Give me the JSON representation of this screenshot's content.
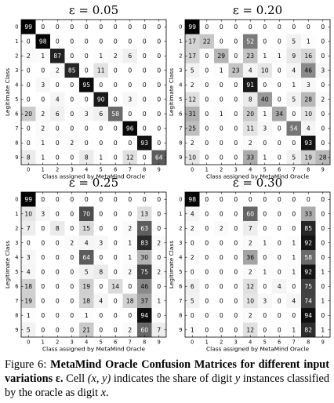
{
  "figure": {
    "panels": [
      {
        "title": "ε = 0.05",
        "ylabel": "Legitimate Class",
        "xlabel": "Class assigned by MetaMind Oracle",
        "rows": [
          [
            99,
            0,
            0,
            0,
            0,
            0,
            0,
            0,
            0,
            0
          ],
          [
            0,
            98,
            0,
            0,
            0,
            0,
            0,
            0,
            0,
            0
          ],
          [
            2,
            1,
            87,
            0,
            0,
            1,
            2,
            6,
            0,
            0
          ],
          [
            0,
            0,
            2,
            85,
            0,
            11,
            0,
            0,
            0,
            0
          ],
          [
            0,
            3,
            0,
            0,
            95,
            0,
            0,
            0,
            0,
            0
          ],
          [
            0,
            0,
            4,
            0,
            0,
            90,
            0,
            3,
            0,
            0
          ],
          [
            20,
            2,
            6,
            0,
            3,
            6,
            58,
            0,
            0,
            0
          ],
          [
            0,
            2,
            0,
            0,
            0,
            0,
            0,
            96,
            0,
            0
          ],
          [
            0,
            1,
            0,
            2,
            0,
            0,
            0,
            0,
            93,
            0
          ],
          [
            8,
            1,
            0,
            0,
            8,
            1,
            0,
            12,
            0,
            64
          ]
        ]
      },
      {
        "title": "ε = 0.20",
        "ylabel": "Legitimate Class",
        "xlabel": "Class assigned by MetaMind Oracle",
        "rows": [
          [
            99,
            0,
            0,
            0,
            0,
            0,
            0,
            0,
            0,
            0
          ],
          [
            17,
            22,
            0,
            0,
            52,
            0,
            0,
            5,
            1,
            0
          ],
          [
            17,
            0,
            29,
            0,
            23,
            1,
            1,
            9,
            16,
            0
          ],
          [
            5,
            0,
            1,
            23,
            4,
            10,
            0,
            4,
            46,
            3
          ],
          [
            2,
            0,
            0,
            0,
            91,
            0,
            0,
            1,
            3,
            0
          ],
          [
            12,
            0,
            0,
            0,
            8,
            40,
            0,
            5,
            28,
            2
          ],
          [
            31,
            0,
            1,
            0,
            20,
            1,
            34,
            0,
            10,
            0
          ],
          [
            25,
            0,
            0,
            0,
            11,
            3,
            0,
            54,
            4,
            0
          ],
          [
            2,
            0,
            0,
            0,
            2,
            0,
            0,
            0,
            93,
            0
          ],
          [
            10,
            0,
            0,
            0,
            33,
            1,
            0,
            5,
            19,
            28
          ]
        ]
      },
      {
        "title": "ε = 0.25",
        "ylabel": "Legitimate Class",
        "xlabel": "Class assigned by MetaMind Oracle",
        "rows": [
          [
            99,
            0,
            0,
            0,
            0,
            0,
            0,
            0,
            0,
            0
          ],
          [
            10,
            3,
            0,
            0,
            70,
            0,
            0,
            0,
            13,
            0
          ],
          [
            7,
            0,
            8,
            0,
            15,
            0,
            0,
            2,
            63,
            0
          ],
          [
            0,
            0,
            0,
            2,
            4,
            3,
            0,
            1,
            83,
            2
          ],
          [
            3,
            0,
            0,
            0,
            64,
            0,
            0,
            1,
            30,
            0
          ],
          [
            4,
            0,
            0,
            0,
            5,
            8,
            0,
            2,
            75,
            2
          ],
          [
            18,
            0,
            0,
            0,
            19,
            0,
            14,
            0,
            46,
            0
          ],
          [
            19,
            0,
            0,
            0,
            18,
            4,
            0,
            18,
            37,
            1
          ],
          [
            1,
            0,
            0,
            0,
            1,
            0,
            0,
            0,
            94,
            0
          ],
          [
            5,
            0,
            0,
            0,
            21,
            0,
            0,
            2,
            60,
            7
          ]
        ]
      },
      {
        "title": "ε = 0.30",
        "ylabel": "Legitimate Class",
        "xlabel": "Class assigned by MetaMind Oracle",
        "rows": [
          [
            98,
            0,
            0,
            0,
            0,
            0,
            0,
            0,
            0,
            0
          ],
          [
            4,
            0,
            0,
            0,
            60,
            0,
            0,
            0,
            33,
            0
          ],
          [
            2,
            0,
            2,
            0,
            7,
            0,
            0,
            0,
            85,
            0
          ],
          [
            0,
            0,
            0,
            0,
            2,
            1,
            0,
            1,
            92,
            0
          ],
          [
            2,
            0,
            0,
            0,
            36,
            0,
            0,
            1,
            58,
            0
          ],
          [
            0,
            0,
            0,
            0,
            2,
            1,
            0,
            1,
            92,
            1
          ],
          [
            6,
            0,
            0,
            0,
            12,
            0,
            4,
            0,
            75,
            0
          ],
          [
            5,
            0,
            0,
            0,
            10,
            3,
            0,
            4,
            74,
            1
          ],
          [
            0,
            0,
            0,
            0,
            2,
            0,
            0,
            0,
            94,
            0
          ],
          [
            1,
            0,
            0,
            0,
            12,
            0,
            0,
            1,
            82,
            1
          ]
        ]
      }
    ],
    "ticks": [
      "0",
      "1",
      "2",
      "3",
      "4",
      "5",
      "6",
      "7",
      "8",
      "9"
    ]
  },
  "chart_data": [
    {
      "type": "heatmap",
      "title": "ε = 0.05",
      "xlabel": "Class assigned by MetaMind Oracle",
      "ylabel": "Legitimate Class",
      "x": [
        "0",
        "1",
        "2",
        "3",
        "4",
        "5",
        "6",
        "7",
        "8",
        "9"
      ],
      "y": [
        "0",
        "1",
        "2",
        "3",
        "4",
        "5",
        "6",
        "7",
        "8",
        "9"
      ],
      "colormap": "white-to-black",
      "value_range": [
        0,
        100
      ]
    },
    {
      "type": "heatmap",
      "title": "ε = 0.20",
      "xlabel": "Class assigned by MetaMind Oracle",
      "ylabel": "Legitimate Class",
      "x": [
        "0",
        "1",
        "2",
        "3",
        "4",
        "5",
        "6",
        "7",
        "8",
        "9"
      ],
      "y": [
        "0",
        "1",
        "2",
        "3",
        "4",
        "5",
        "6",
        "7",
        "8",
        "9"
      ],
      "colormap": "white-to-black",
      "value_range": [
        0,
        100
      ]
    },
    {
      "type": "heatmap",
      "title": "ε = 0.25",
      "xlabel": "Class assigned by MetaMind Oracle",
      "ylabel": "Legitimate Class",
      "x": [
        "0",
        "1",
        "2",
        "3",
        "4",
        "5",
        "6",
        "7",
        "8",
        "9"
      ],
      "y": [
        "0",
        "1",
        "2",
        "3",
        "4",
        "5",
        "6",
        "7",
        "8",
        "9"
      ],
      "colormap": "white-to-black",
      "value_range": [
        0,
        100
      ]
    },
    {
      "type": "heatmap",
      "title": "ε = 0.30",
      "xlabel": "Class assigned by MetaMind Oracle",
      "ylabel": "Legitimate Class",
      "x": [
        "0",
        "1",
        "2",
        "3",
        "4",
        "5",
        "6",
        "7",
        "8",
        "9"
      ],
      "y": [
        "0",
        "1",
        "2",
        "3",
        "4",
        "5",
        "6",
        "7",
        "8",
        "9"
      ],
      "colormap": "white-to-black",
      "value_range": [
        0,
        100
      ]
    }
  ],
  "caption": {
    "label": "Figure 6:",
    "title": "MetaMind Oracle Confusion Matrices for different input variations ε.",
    "cell_prefix": "Cell",
    "cell_coord": "(x, y)",
    "cell_text_a": "indicates the share of digit",
    "digit_y": "y",
    "cell_text_b": "instances classified by the oracle as digit",
    "digit_x": "x",
    "end": "."
  }
}
